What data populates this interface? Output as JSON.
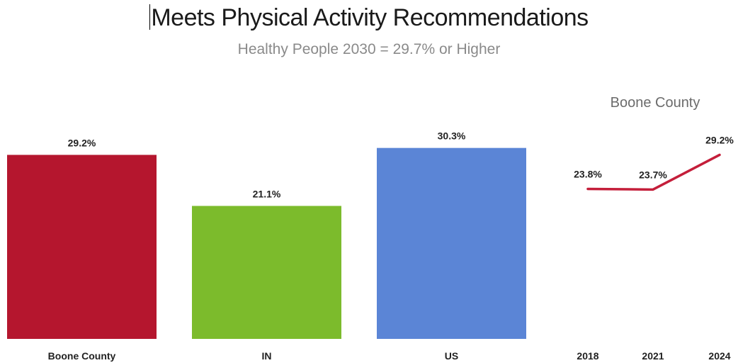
{
  "title": "Meets Physical Activity Recommendations",
  "subtitle": "Healthy People 2030 = 29.7% or Higher",
  "chart_data": [
    {
      "type": "bar",
      "categories": [
        "Boone County",
        "IN",
        "US"
      ],
      "values": [
        29.2,
        21.1,
        30.3
      ],
      "data_labels": [
        "29.2%",
        "21.1%",
        "30.3%"
      ],
      "colors": [
        "#b5162e",
        "#7cbb2c",
        "#5b85d6"
      ],
      "ylim": [
        0,
        36
      ]
    },
    {
      "type": "line",
      "title": "Boone County",
      "x": [
        "2018",
        "2021",
        "2024"
      ],
      "values": [
        23.8,
        23.7,
        29.2
      ],
      "data_labels": [
        "23.8%",
        "23.7%",
        "29.2%"
      ],
      "color": "#c41e3a",
      "ylim": [
        0,
        36
      ]
    }
  ]
}
